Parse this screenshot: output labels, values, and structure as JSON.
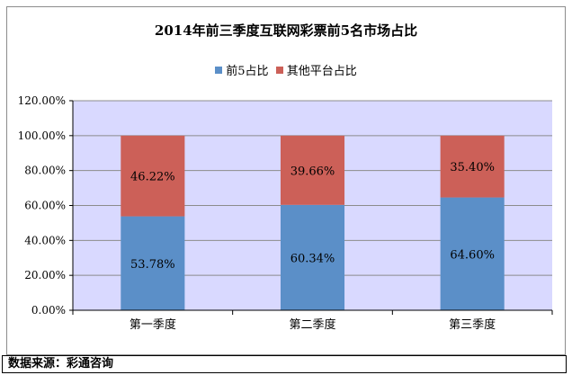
{
  "chart_data": {
    "type": "bar",
    "stacked": true,
    "title": "2014年前三季度互联网彩票前5名市场占比",
    "categories": [
      "第一季度",
      "第二季度",
      "第三季度"
    ],
    "series": [
      {
        "name": "前5占比",
        "values": [
          53.78,
          60.34,
          64.6
        ],
        "labels": [
          "53.78%",
          "60.34%",
          "64.60%"
        ],
        "color": "#5b8fc8"
      },
      {
        "name": "其他平台占比",
        "values": [
          46.22,
          39.66,
          35.4
        ],
        "labels": [
          "46.22%",
          "39.66%",
          "35.40%"
        ],
        "color": "#cc6058"
      }
    ],
    "ylim": [
      0,
      120
    ],
    "yticks": [
      0,
      20,
      40,
      60,
      80,
      100,
      120
    ],
    "ytick_labels": [
      "0.00%",
      "20.00%",
      "40.00%",
      "60.00%",
      "80.00%",
      "100.00%",
      "120.00%"
    ],
    "grid": true,
    "legend_position": "top",
    "plot_background": "#d9d9ff"
  },
  "footer": {
    "source_text": "数据来源：彩通咨询"
  }
}
